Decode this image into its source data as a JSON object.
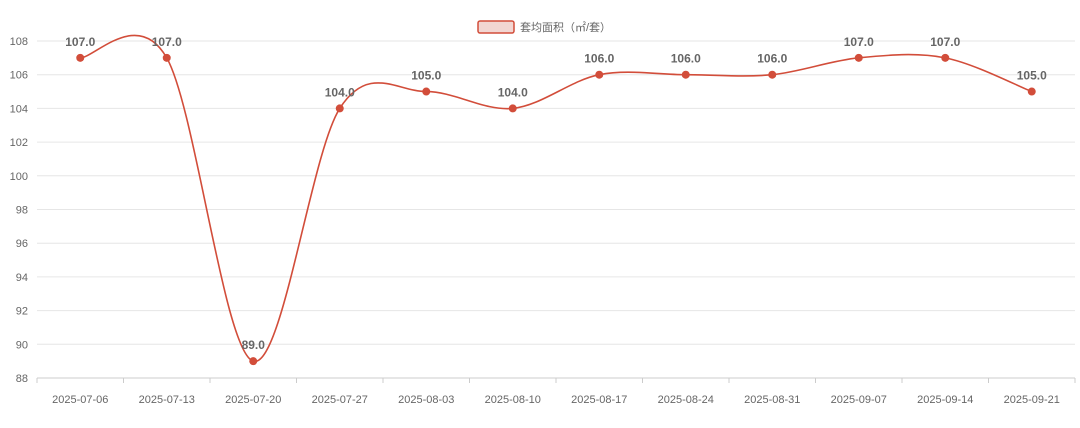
{
  "chart_data": {
    "type": "line",
    "categories": [
      "2025-07-06",
      "2025-07-13",
      "2025-07-20",
      "2025-07-27",
      "2025-08-03",
      "2025-08-10",
      "2025-08-17",
      "2025-08-24",
      "2025-08-31",
      "2025-09-07",
      "2025-09-14",
      "2025-09-21"
    ],
    "series": [
      {
        "name": "套均面积（㎡/套）",
        "values": [
          107.0,
          107.0,
          89.0,
          104.0,
          105.0,
          104.0,
          106.0,
          106.0,
          106.0,
          107.0,
          107.0,
          105.0
        ],
        "labels": [
          "107.0",
          "107.0",
          "89.0",
          "104.0",
          "105.0",
          "104.0",
          "106.0",
          "106.0",
          "106.0",
          "107.0",
          "107.0",
          "105.0"
        ],
        "color": "#d24d3a",
        "smooth": true
      }
    ],
    "ylim": [
      88,
      108
    ],
    "yticks": [
      "88",
      "90",
      "92",
      "94",
      "96",
      "98",
      "100",
      "102",
      "104",
      "106",
      "108"
    ],
    "grid": true,
    "legend": "top-center"
  }
}
